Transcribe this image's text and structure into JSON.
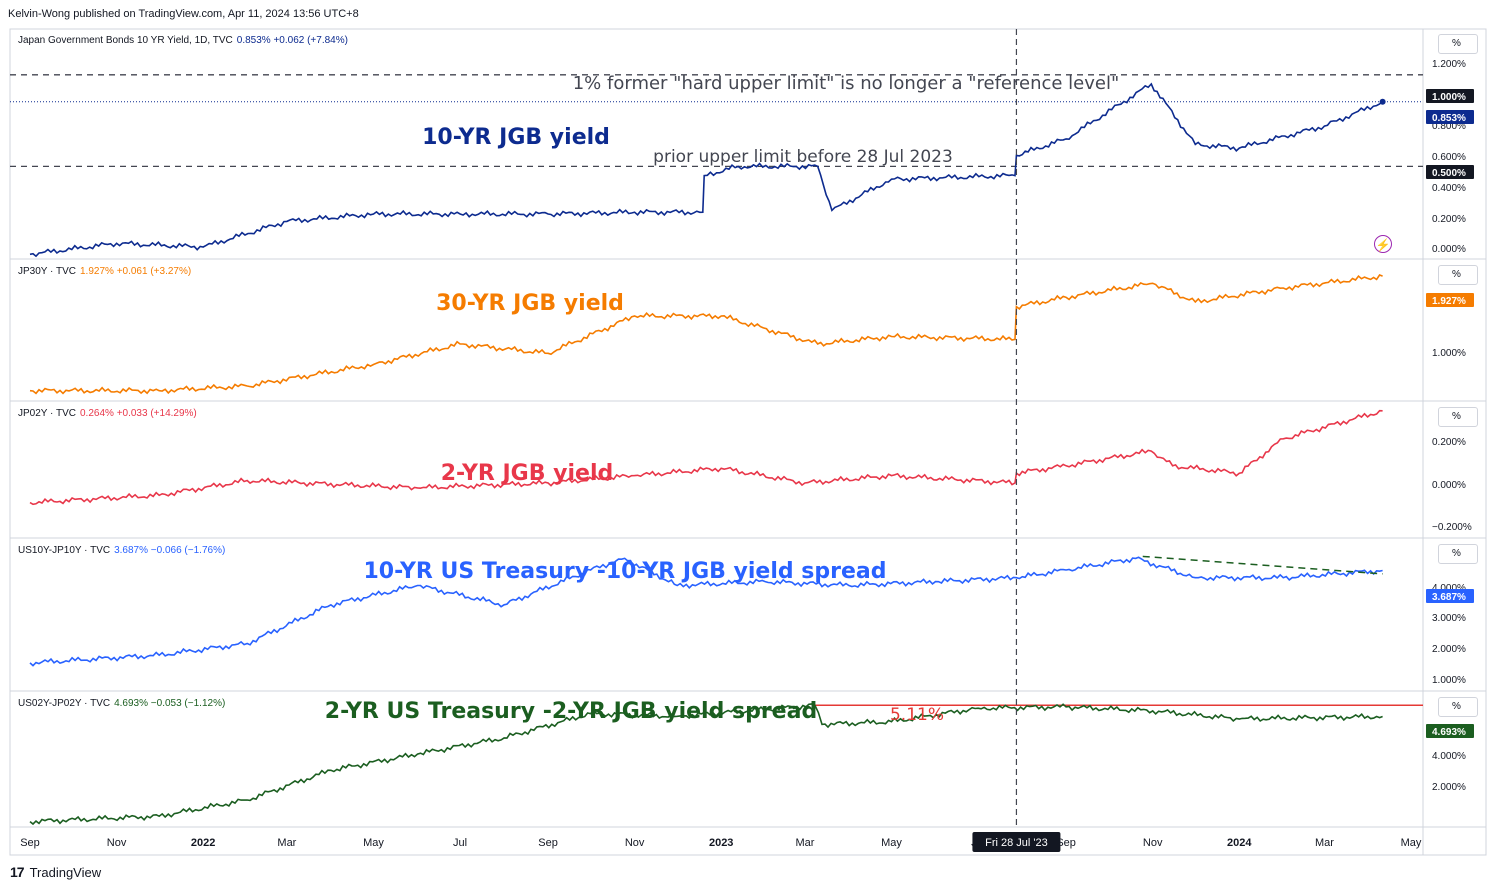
{
  "byline": "Kelvin-Wong published on TradingView.com, Apr 11, 2024 13:56 UTC+8",
  "footer": {
    "brand": "TradingView",
    "logo": "17"
  },
  "icons": {
    "flash": "lightning-icon"
  },
  "colors": {
    "navy": "#0d2b8f",
    "orange": "#f57c00",
    "red": "#e8374a",
    "blue": "#2962ff",
    "green": "#1b5e20",
    "spread_line": "#e53935",
    "dashed": "#434651"
  },
  "crosshair_label": "Fri 28 Jul '23",
  "chart_data": [
    {
      "type": "line",
      "header": {
        "name": "Japan Government Bonds 10 YR Yield, 1D, TVC",
        "last": "0.853%",
        "change": "+0.062 (+7.84%)"
      },
      "title": "10-YR JGB yield",
      "y_ticks": [
        "1.200%",
        "0.800%",
        "0.600%",
        "0.400%",
        "0.200%",
        "0.000%"
      ],
      "ylim": [
        0,
        1.25
      ],
      "price_tags": [
        "1.000%",
        "0.853%",
        "0.500%"
      ],
      "annotations": [
        "1% former \"hard upper limit\" is no longer a \"reference level\"",
        "prior upper limit before 28 Jul 2023"
      ],
      "hlines": [
        1.0,
        0.5
      ],
      "x": [
        "2021-09-01",
        "2021-11-01",
        "2022-01-01",
        "2022-03-01",
        "2022-05-01",
        "2022-07-01",
        "2022-09-01",
        "2022-11-01",
        "2022-12-19",
        "2022-12-20",
        "2023-01-13",
        "2023-03-10",
        "2023-03-20",
        "2023-05-01",
        "2023-07-27",
        "2023-07-28",
        "2023-09-01",
        "2023-10-31",
        "2023-12-01",
        "2024-01-01",
        "2024-03-01",
        "2024-04-11"
      ],
      "y": [
        0.02,
        0.08,
        0.06,
        0.2,
        0.24,
        0.24,
        0.24,
        0.25,
        0.25,
        0.45,
        0.5,
        0.5,
        0.26,
        0.43,
        0.45,
        0.56,
        0.65,
        0.95,
        0.62,
        0.6,
        0.72,
        0.853
      ]
    },
    {
      "type": "line",
      "header": {
        "name": "JP30Y · TVC",
        "last": "1.927%",
        "change": "+0.061 (+3.27%)"
      },
      "title": "30-YR JGB yield",
      "y_ticks": [
        "1.000%"
      ],
      "ylim": [
        0.6,
        2.1
      ],
      "price_tags": [
        "1.927%"
      ],
      "x": [
        "2021-09-01",
        "2021-12-01",
        "2022-02-01",
        "2022-05-01",
        "2022-07-01",
        "2022-09-01",
        "2022-11-01",
        "2023-01-01",
        "2023-03-10",
        "2023-05-01",
        "2023-07-27",
        "2023-07-28",
        "2023-09-01",
        "2023-11-01",
        "2023-12-01",
        "2024-02-01",
        "2024-04-11"
      ],
      "y": [
        0.7,
        0.7,
        0.75,
        0.98,
        1.2,
        1.1,
        1.5,
        1.5,
        1.2,
        1.28,
        1.25,
        1.6,
        1.7,
        1.85,
        1.65,
        1.8,
        1.927
      ]
    },
    {
      "type": "line",
      "header": {
        "name": "JP02Y · TVC",
        "last": "0.264%",
        "change": "+0.033 (+14.29%)"
      },
      "title": "2-YR JGB yield",
      "y_ticks": [
        "0.200%",
        "0.000%",
        "−0.200%"
      ],
      "ylim": [
        -0.25,
        0.3
      ],
      "price_tags": [],
      "x": [
        "2021-09-01",
        "2021-12-01",
        "2022-02-01",
        "2022-06-01",
        "2022-09-01",
        "2022-11-01",
        "2023-01-01",
        "2023-03-01",
        "2023-05-01",
        "2023-07-27",
        "2023-07-28",
        "2023-09-01",
        "2023-10-31",
        "2023-11-15",
        "2024-01-01",
        "2024-02-01",
        "2024-04-11"
      ],
      "y": [
        -0.11,
        -0.08,
        -0.02,
        -0.05,
        -0.03,
        0.0,
        0.03,
        -0.03,
        0.0,
        -0.03,
        0.01,
        0.04,
        0.1,
        0.04,
        0.01,
        0.15,
        0.264
      ]
    },
    {
      "type": "line",
      "header": {
        "name": "US10Y-JP10Y · TVC",
        "last": "3.687%",
        "change": "−0.066 (−1.76%)"
      },
      "title": "10-YR US Treasury -10-YR JGB yield spread",
      "y_ticks": [
        "4.000%",
        "3.000%",
        "2.000%",
        "1.000%"
      ],
      "ylim": [
        0.6,
        4.5
      ],
      "price_tags": [
        "3.687%"
      ],
      "x": [
        "2021-09-01",
        "2021-12-01",
        "2022-02-01",
        "2022-04-01",
        "2022-06-01",
        "2022-08-01",
        "2022-10-01",
        "2022-10-25",
        "2022-12-01",
        "2023-02-01",
        "2023-04-01",
        "2023-06-01",
        "2023-07-28",
        "2023-09-01",
        "2023-10-20",
        "2023-12-01",
        "2024-02-01",
        "2024-04-11"
      ],
      "y": [
        1.3,
        1.5,
        1.8,
        2.8,
        3.3,
        2.8,
        3.7,
        4.0,
        3.3,
        3.4,
        3.3,
        3.4,
        3.5,
        3.7,
        4.0,
        3.5,
        3.5,
        3.687
      ]
    },
    {
      "type": "line",
      "header": {
        "name": "US02Y-JP02Y · TVC",
        "last": "4.693%",
        "change": "−0.053 (−1.12%)"
      },
      "title": "2-YR US Treasury -2-YR JGB yield spread",
      "y_ticks": [
        "4.000%",
        "2.000%"
      ],
      "ylim": [
        0.6,
        5.6
      ],
      "price_tags": [
        "4.693%"
      ],
      "annotations": [
        "5.11%"
      ],
      "hlines": [
        5.11
      ],
      "x": [
        "2021-09-01",
        "2021-12-01",
        "2022-02-01",
        "2022-04-01",
        "2022-06-01",
        "2022-08-01",
        "2022-10-01",
        "2022-12-01",
        "2023-03-08",
        "2023-03-13",
        "2023-05-01",
        "2023-07-01",
        "2023-09-01",
        "2023-11-01",
        "2024-01-01",
        "2024-04-11"
      ],
      "y": [
        0.8,
        1.0,
        1.6,
        2.7,
        3.3,
        3.9,
        4.8,
        4.7,
        5.11,
        4.4,
        4.5,
        5.0,
        5.05,
        4.9,
        4.6,
        4.693
      ]
    }
  ],
  "x_axis": {
    "ticks": [
      "Sep",
      "Nov",
      "2022",
      "Mar",
      "May",
      "Jul",
      "Sep",
      "Nov",
      "2023",
      "Mar",
      "May",
      "Jul",
      "Sep",
      "Nov",
      "2024",
      "Mar",
      "May"
    ]
  }
}
